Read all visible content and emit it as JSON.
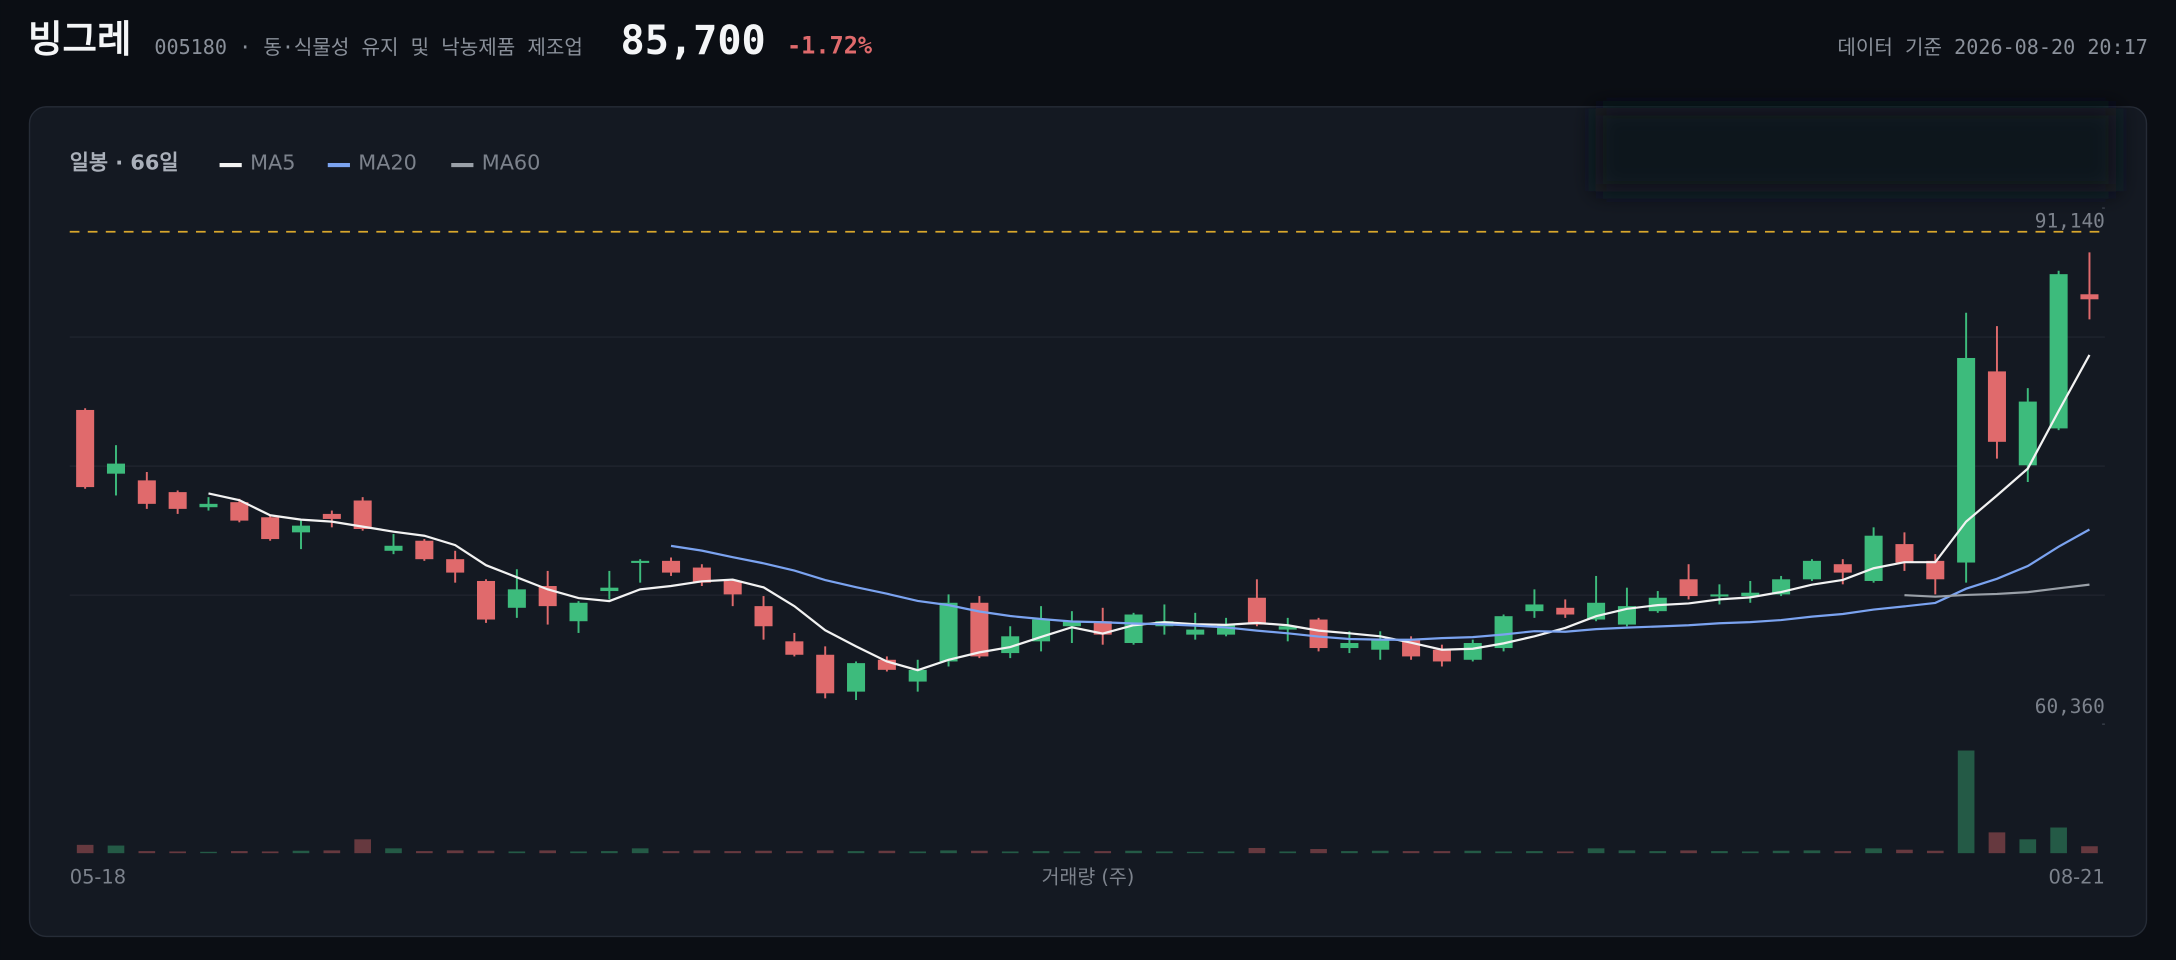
{
  "header": {
    "name": "빙그레",
    "info": "005180 · 동·식물성 유지 및 낙농제품 제조업",
    "price": "85,700",
    "change": "-1.72%",
    "timestamp": "데이터 기준 2026-08-20 20:17"
  },
  "chart_data": {
    "type": "candlestick",
    "legend_title": "일봉 · 66일",
    "volume_label": "거래량 (주)",
    "categories": [
      "05-18",
      null,
      null,
      null,
      null,
      null,
      null,
      null,
      null,
      null,
      null,
      null,
      null,
      null,
      null,
      null,
      null,
      null,
      null,
      null,
      null,
      null,
      null,
      null,
      null,
      null,
      null,
      null,
      null,
      null,
      null,
      null,
      null,
      null,
      null,
      null,
      null,
      null,
      null,
      null,
      null,
      null,
      null,
      null,
      null,
      null,
      null,
      null,
      null,
      null,
      null,
      null,
      null,
      null,
      null,
      null,
      null,
      null,
      null,
      null,
      null,
      null,
      null,
      null,
      null,
      "08-21"
    ],
    "open": [
      79100,
      75300,
      74900,
      74200,
      73300,
      73600,
      72700,
      71800,
      72900,
      73700,
      70700,
      71300,
      70200,
      68900,
      67300,
      68600,
      66500,
      68300,
      70000,
      70100,
      69700,
      68900,
      67400,
      65300,
      64500,
      62300,
      64200,
      62900,
      64100,
      67600,
      64600,
      65300,
      66200,
      66500,
      65200,
      66200,
      65700,
      65700,
      67900,
      66000,
      66600,
      64900,
      64800,
      65400,
      64800,
      64200,
      64900,
      67100,
      67300,
      66600,
      66300,
      67100,
      69000,
      68000,
      68000,
      68100,
      69000,
      69900,
      68900,
      71100,
      70100,
      70000,
      81400,
      75800,
      78000,
      86000
    ],
    "high": [
      79200,
      77000,
      75400,
      74300,
      73900,
      73800,
      72800,
      72500,
      73100,
      73900,
      71700,
      71400,
      70700,
      69000,
      69600,
      69500,
      67700,
      69500,
      70200,
      70300,
      69900,
      69000,
      68000,
      65800,
      65000,
      64100,
      64400,
      64200,
      68100,
      68000,
      66200,
      67400,
      67100,
      67300,
      67000,
      67500,
      67000,
      66700,
      69000,
      66700,
      66700,
      65900,
      65900,
      65600,
      65100,
      65400,
      66900,
      68400,
      67800,
      69200,
      68500,
      68300,
      69900,
      68700,
      68900,
      69200,
      70200,
      70200,
      72100,
      71800,
      70500,
      84900,
      84100,
      80400,
      87400,
      88500
    ],
    "low": [
      74400,
      74000,
      73200,
      72900,
      73100,
      72400,
      71300,
      70800,
      72100,
      71900,
      70500,
      70100,
      68800,
      66400,
      66700,
      66300,
      65800,
      67800,
      68800,
      69200,
      68600,
      67400,
      65400,
      64400,
      61900,
      61800,
      63500,
      62300,
      63800,
      64300,
      64300,
      64700,
      65200,
      65100,
      65100,
      65700,
      65400,
      65600,
      66200,
      65300,
      64700,
      64600,
      64200,
      64200,
      63800,
      64100,
      64700,
      66700,
      66700,
      66500,
      66200,
      67000,
      67800,
      67500,
      67600,
      68000,
      68900,
      68700,
      68800,
      69500,
      68100,
      68800,
      76200,
      74800,
      77900,
      84500
    ],
    "close": [
      74500,
      75900,
      73500,
      73200,
      73500,
      72500,
      71400,
      72200,
      72600,
      72000,
      71000,
      70200,
      69400,
      66600,
      68400,
      67400,
      67600,
      68500,
      70100,
      69400,
      68800,
      68100,
      66200,
      64500,
      62200,
      64000,
      63600,
      63600,
      67600,
      64400,
      65600,
      66600,
      66500,
      65700,
      66900,
      66500,
      66000,
      66300,
      66300,
      66200,
      64900,
      65200,
      65400,
      64400,
      64100,
      65200,
      66800,
      67500,
      66900,
      67600,
      67400,
      67900,
      68000,
      68100,
      68200,
      69000,
      70100,
      69400,
      71600,
      70000,
      69000,
      82200,
      77200,
      79600,
      87200,
      85700
    ],
    "volume": [
      120000,
      110000,
      30000,
      25000,
      20000,
      30000,
      25000,
      35000,
      40000,
      200000,
      70000,
      30000,
      40000,
      35000,
      25000,
      40000,
      25000,
      30000,
      70000,
      30000,
      40000,
      30000,
      35000,
      30000,
      40000,
      30000,
      35000,
      25000,
      40000,
      35000,
      25000,
      30000,
      25000,
      30000,
      35000,
      25000,
      20000,
      25000,
      75000,
      25000,
      60000,
      30000,
      35000,
      30000,
      30000,
      35000,
      25000,
      30000,
      25000,
      70000,
      40000,
      30000,
      40000,
      30000,
      25000,
      35000,
      40000,
      30000,
      70000,
      50000,
      35000,
      1480000,
      300000,
      200000,
      370000,
      100000
    ],
    "up_color": "#3dbb7c",
    "down_color": "#e06a6c",
    "ma": [
      {
        "name": "MA5",
        "color": "#f2f2f2",
        "values": [
          null,
          null,
          null,
          null,
          74120,
          73720,
          72820,
          72560,
          72440,
          72140,
          71840,
          71600,
          71040,
          69840,
          69120,
          68400,
          67880,
          67700,
          68400,
          68600,
          68880,
          68980,
          68520,
          67400,
          65960,
          65000,
          64100,
          63580,
          64200,
          64640,
          64960,
          65560,
          66140,
          65760,
          66260,
          66440,
          66320,
          66280,
          66400,
          66260,
          65940,
          65780,
          65600,
          65220,
          64800,
          64860,
          65180,
          65600,
          66100,
          66800,
          67240,
          67460,
          67560,
          67800,
          67920,
          68240,
          68680,
          68960,
          69660,
          70020,
          70020,
          72440,
          74000,
          75600,
          79040,
          82380
        ]
      },
      {
        "name": "MA20",
        "color": "#7ba3f0",
        "values": [
          null,
          null,
          null,
          null,
          null,
          null,
          null,
          null,
          null,
          null,
          null,
          null,
          null,
          null,
          null,
          null,
          null,
          null,
          null,
          70995,
          70710,
          70320,
          69955,
          69520,
          68955,
          68530,
          68140,
          67710,
          67460,
          67080,
          66810,
          66630,
          66485,
          66440,
          66365,
          66320,
          66240,
          66130,
          65940,
          65780,
          65585,
          65440,
          65400,
          65395,
          65490,
          65550,
          65710,
          65905,
          65870,
          66030,
          66120,
          66185,
          66260,
          66380,
          66445,
          66570,
          66775,
          66930,
          67195,
          67385,
          67590,
          68440,
          69030,
          69790,
          70945,
          71970
        ]
      },
      {
        "name": "MA60",
        "color": "#9aa0a8",
        "values": [
          null,
          null,
          null,
          null,
          null,
          null,
          null,
          null,
          null,
          null,
          null,
          null,
          null,
          null,
          null,
          null,
          null,
          null,
          null,
          null,
          null,
          null,
          null,
          null,
          null,
          null,
          null,
          null,
          null,
          null,
          null,
          null,
          null,
          null,
          null,
          null,
          null,
          null,
          null,
          null,
          null,
          null,
          null,
          null,
          null,
          null,
          null,
          null,
          null,
          null,
          null,
          null,
          null,
          null,
          null,
          null,
          null,
          null,
          null,
          68053,
          67962,
          68067,
          68128,
          68235,
          68463,
          68683
        ]
      }
    ],
    "ylim": [
      60360,
      91140
    ],
    "yticks": [
      {
        "value": 91140,
        "label": "91,140"
      },
      {
        "value": 60360,
        "label": "60,360"
      }
    ],
    "ygrid": [
      68055,
      75750,
      83445
    ],
    "ref_line": 89730,
    "volume_ylim": [
      0,
      1500000
    ]
  }
}
